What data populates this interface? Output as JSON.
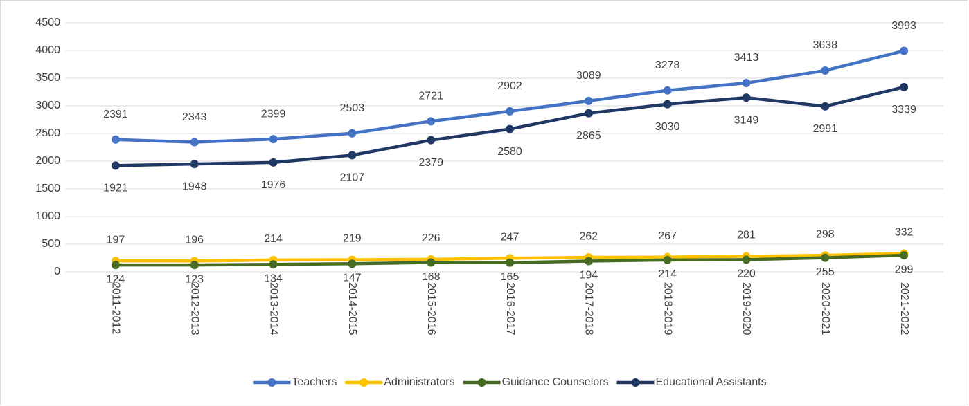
{
  "chart_data": {
    "type": "line",
    "categories": [
      "2011-2012",
      "2012-2013",
      "2013-2014",
      "2014-2015",
      "2015-2016",
      "2016-2017",
      "2017-2018",
      "2018-2019",
      "2019-2020",
      "2020-2021",
      "2021-2022"
    ],
    "series": [
      {
        "name": "Teachers",
        "color": "#4472c4",
        "values": [
          2391,
          2343,
          2399,
          2503,
          2721,
          2902,
          3089,
          3278,
          3413,
          3638,
          3993
        ]
      },
      {
        "name": "Administrators",
        "color": "#ffc000",
        "values": [
          197,
          196,
          214,
          219,
          226,
          247,
          262,
          267,
          281,
          298,
          332
        ]
      },
      {
        "name": "Guidance Counselors",
        "color": "#476b22",
        "values": [
          124,
          123,
          134,
          147,
          168,
          165,
          194,
          214,
          220,
          255,
          299
        ]
      },
      {
        "name": "Educational Assistants",
        "color": "#203864",
        "values": [
          1921,
          1948,
          1976,
          2107,
          2379,
          2580,
          2865,
          3030,
          3149,
          2991,
          3339
        ]
      }
    ],
    "ylim": [
      0,
      4500
    ],
    "yticks": [
      0,
      500,
      1000,
      1500,
      2000,
      2500,
      3000,
      3500,
      4000,
      4500
    ],
    "grid": true,
    "legend": "bottom"
  }
}
